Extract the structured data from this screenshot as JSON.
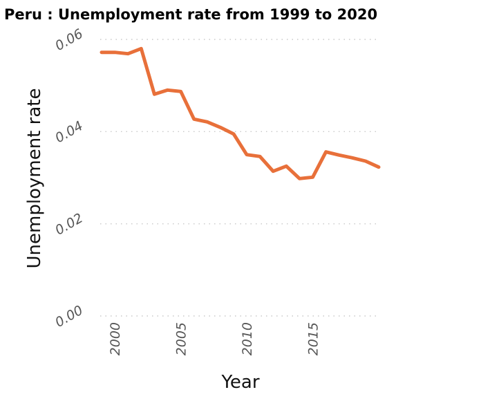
{
  "chart_data": {
    "type": "line",
    "title": "Peru : Unemployment rate from 1999 to 2020",
    "xlabel": "Year",
    "ylabel": "Unemployment rate",
    "xlim": [
      1999,
      2020
    ],
    "ylim": [
      0,
      0.06
    ],
    "x_ticks": [
      {
        "value": 2000,
        "label": "2000"
      },
      {
        "value": 2005,
        "label": "2005"
      },
      {
        "value": 2010,
        "label": "2010"
      },
      {
        "value": 2015,
        "label": "2015"
      }
    ],
    "y_ticks": [
      {
        "value": 0,
        "label": "0.00"
      },
      {
        "value": 0.02,
        "label": "0.02"
      },
      {
        "value": 0.04,
        "label": "0.04"
      },
      {
        "value": 0.06,
        "label": "0.06"
      }
    ],
    "grid": "horizontal dotted",
    "series": [
      {
        "color": "#e8703a",
        "x": [
          1999,
          2000,
          2001,
          2002,
          2003,
          2004,
          2005,
          2006,
          2007,
          2008,
          2009,
          2010,
          2011,
          2012,
          2013,
          2014,
          2015,
          2016,
          2017,
          2018,
          2019,
          2020
        ],
        "y": [
          0.0572,
          0.0572,
          0.0569,
          0.058,
          0.0481,
          0.049,
          0.0487,
          0.0427,
          0.0421,
          0.0409,
          0.0395,
          0.035,
          0.0346,
          0.0314,
          0.0325,
          0.0298,
          0.0301,
          0.0356,
          0.0349,
          0.0343,
          0.0336,
          0.0323
        ]
      }
    ]
  }
}
